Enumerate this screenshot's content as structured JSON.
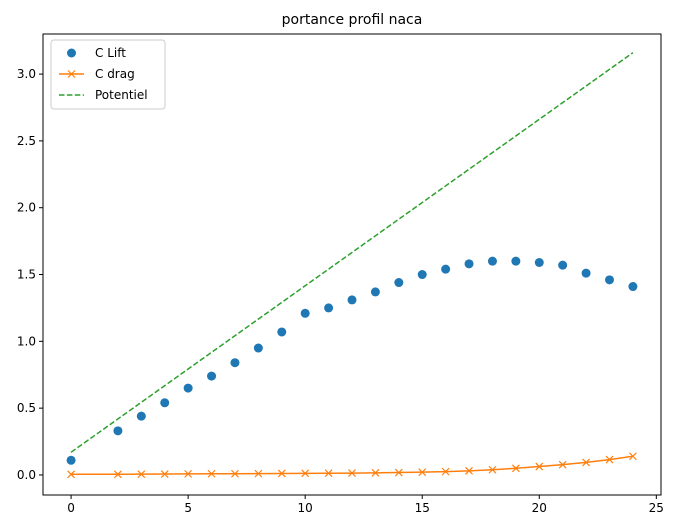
{
  "chart_data": {
    "type": "line",
    "title": "portance profil naca",
    "xlabel": "",
    "ylabel": "",
    "xlim": [
      -1.2,
      25.2
    ],
    "ylim": [
      -0.15,
      3.3
    ],
    "xticks": [
      0,
      5,
      10,
      15,
      20,
      25
    ],
    "yticks": [
      0.0,
      0.5,
      1.0,
      1.5,
      2.0,
      2.5,
      3.0
    ],
    "grid": false,
    "legend_position": "top-left",
    "series": [
      {
        "name": "C Lift",
        "style": "markers-circle",
        "color": "#1f77b4",
        "x": [
          0,
          2,
          3,
          4,
          5,
          6,
          7,
          8,
          9,
          10,
          11,
          12,
          13,
          14,
          15,
          16,
          17,
          18,
          19,
          20,
          21,
          22,
          23,
          24
        ],
        "y": [
          0.11,
          0.33,
          0.44,
          0.54,
          0.65,
          0.74,
          0.84,
          0.95,
          1.07,
          1.21,
          1.25,
          1.31,
          1.37,
          1.44,
          1.5,
          1.54,
          1.58,
          1.6,
          1.6,
          1.59,
          1.57,
          1.51,
          1.46,
          1.41
        ]
      },
      {
        "name": "C drag",
        "style": "line-x-marker",
        "color": "#ff7f0e",
        "x": [
          0,
          2,
          3,
          4,
          5,
          6,
          7,
          8,
          9,
          10,
          11,
          12,
          13,
          14,
          15,
          16,
          17,
          18,
          19,
          20,
          21,
          22,
          23,
          24
        ],
        "y": [
          0.005,
          0.005,
          0.006,
          0.007,
          0.008,
          0.009,
          0.009,
          0.01,
          0.011,
          0.012,
          0.013,
          0.014,
          0.016,
          0.018,
          0.021,
          0.025,
          0.031,
          0.039,
          0.05,
          0.063,
          0.077,
          0.094,
          0.115,
          0.14
        ]
      },
      {
        "name": "Potentiel",
        "style": "line-dashed",
        "color": "#2ca02c",
        "x": [
          0,
          24
        ],
        "y": [
          0.17,
          3.16
        ]
      }
    ]
  }
}
